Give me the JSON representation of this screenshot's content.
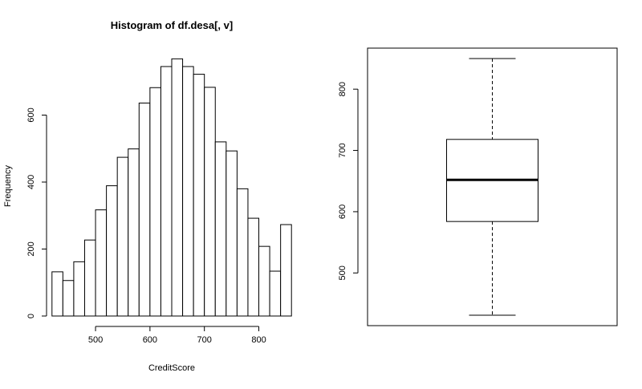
{
  "chart_data": [
    {
      "type": "bar",
      "subtype": "histogram",
      "title": "Histogram of df.desa[, v]",
      "xlabel": "CreditScore",
      "ylabel": "Frequency",
      "bin_edges": [
        420,
        440,
        460,
        480,
        500,
        520,
        540,
        560,
        580,
        600,
        620,
        640,
        660,
        680,
        700,
        720,
        740,
        760,
        780,
        800,
        820,
        840,
        860
      ],
      "values": [
        132,
        106,
        162,
        227,
        317,
        389,
        474,
        499,
        636,
        682,
        745,
        768,
        745,
        722,
        683,
        520,
        493,
        380,
        292,
        208,
        134,
        273
      ],
      "xlim": [
        410,
        870
      ],
      "ylim": [
        0,
        800
      ],
      "xticks": [
        500,
        600,
        700,
        800
      ],
      "yticks": [
        0,
        200,
        400,
        600
      ],
      "xtick_labels": [
        "500",
        "600",
        "700",
        "800"
      ],
      "ytick_labels": [
        "0",
        "200",
        "400",
        "600"
      ],
      "grid": false
    },
    {
      "type": "boxplot",
      "title": "",
      "xlabel": "",
      "ylabel": "",
      "whisker_low": 431,
      "q1": 584,
      "median": 652,
      "q3": 718,
      "whisker_high": 850,
      "ylim": [
        414,
        867
      ],
      "yticks": [
        500,
        600,
        700,
        800
      ],
      "ytick_labels": [
        "500",
        "600",
        "700",
        "800"
      ],
      "grid": false
    }
  ]
}
